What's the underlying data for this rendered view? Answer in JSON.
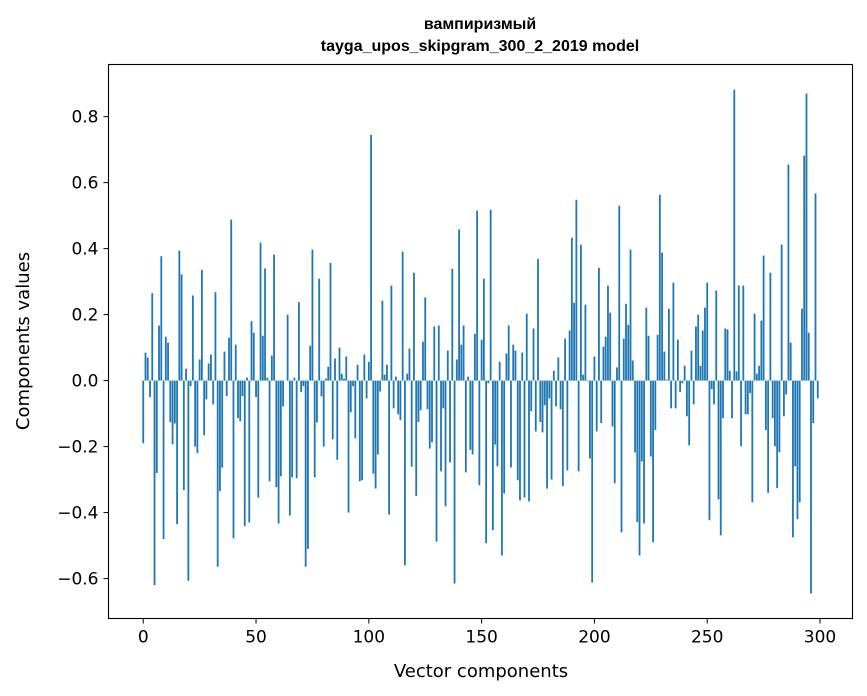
{
  "chart_data": {
    "type": "bar",
    "title": [
      "вампиризмый",
      "tayga_upos_skipgram_300_2_2019 model"
    ],
    "xlabel": "Vector components",
    "ylabel": "Components values",
    "xlim": [
      -15.4,
      314.4
    ],
    "ylim": [
      -0.721,
      0.958
    ],
    "xticks": [
      0,
      50,
      100,
      150,
      200,
      250,
      300
    ],
    "xtick_labels": [
      "0",
      "50",
      "100",
      "150",
      "200",
      "250",
      "300"
    ],
    "yticks": [
      -0.6,
      -0.4,
      -0.2,
      0.0,
      0.2,
      0.4,
      0.6,
      0.8
    ],
    "ytick_labels": [
      "−0.6",
      "−0.4",
      "−0.2",
      "0.0",
      "0.2",
      "0.4",
      "0.6",
      "0.8"
    ],
    "grid": false,
    "bar_color": "#1f77b4",
    "values": [
      -0.19,
      0.085,
      0.07,
      -0.05,
      0.265,
      -0.62,
      -0.28,
      0.167,
      0.377,
      -0.48,
      0.133,
      0.115,
      -0.126,
      -0.193,
      -0.13,
      -0.435,
      0.394,
      0.322,
      -0.332,
      0.036,
      -0.607,
      -0.017,
      0.258,
      -0.2,
      -0.22,
      0.064,
      0.336,
      -0.166,
      -0.057,
      0.052,
      0.079,
      -0.072,
      0.268,
      -0.564,
      -0.335,
      -0.264,
      0.088,
      -0.047,
      0.13,
      0.488,
      -0.478,
      0.109,
      -0.114,
      -0.123,
      -0.047,
      -0.441,
      0.009,
      -0.43,
      0.18,
      0.145,
      -0.05,
      -0.355,
      0.418,
      0.136,
      0.34,
      0.009,
      -0.305,
      0.076,
      0.382,
      -0.323,
      -0.433,
      -0.29,
      -0.078,
      0.0,
      0.2,
      -0.409,
      -0.293,
      0.009,
      -0.296,
      0.238,
      -0.035,
      -0.017,
      -0.564,
      -0.51,
      0.106,
      0.397,
      -0.293,
      -0.127,
      0.309,
      -0.048,
      -0.2,
      0.006,
      0.042,
      0.357,
      -0.178,
      0.067,
      -0.24,
      0.1,
      0.021,
      0.006,
      0.073,
      -0.4,
      -0.096,
      -0.017,
      -0.175,
      0.048,
      -0.305,
      -0.302,
      0.079,
      -0.054,
      0.057,
      0.745,
      -0.282,
      -0.327,
      -0.224,
      -0.033,
      0.242,
      0.018,
      0.048,
      -0.406,
      0.288,
      -0.084,
      0.012,
      -0.102,
      -0.12,
      0.391,
      -0.56,
      0.021,
      0.097,
      -0.261,
      0.327,
      -0.35,
      -0.126,
      -0.09,
      0.118,
      0.252,
      -0.087,
      -0.206,
      -0.187,
      0.164,
      -0.488,
      0.167,
      -0.275,
      -0.084,
      -0.381,
      0.091,
      -0.248,
      0.339,
      -0.615,
      0.064,
      0.458,
      0.109,
      0.167,
      -0.278,
      0.012,
      -0.21,
      -0.224,
      0.142,
      0.515,
      -0.317,
      0.124,
      0.309,
      -0.493,
      -0.008,
      0.518,
      -0.453,
      -0.194,
      -0.26,
      0.057,
      -0.53,
      -0.342,
      0.082,
      0.167,
      -0.263,
      0.109,
      0.091,
      -0.302,
      -0.363,
      0.085,
      -0.354,
      0.203,
      -0.366,
      -0.093,
      0.158,
      -0.154,
      0.369,
      -0.126,
      -0.157,
      -0.075,
      -0.327,
      -0.054,
      -0.3,
      0.03,
      -0.078,
      0.07,
      -0.087,
      -0.32,
      0.127,
      -0.272,
      0.152,
      0.433,
      0.236,
      0.548,
      -0.275,
      0.412,
      0.018,
      0.23,
      -0.002,
      -0.236,
      -0.612,
      0.073,
      -0.154,
      0.342,
      -0.129,
      0.103,
      0.133,
      0.288,
      0.206,
      -0.139,
      -0.311,
      0.04,
      0.53,
      -0.46,
      0.127,
      0.233,
      0.169,
      0.397,
      0.061,
      -0.218,
      -0.429,
      -0.53,
      -0.245,
      -0.433,
      0.221,
      0.136,
      -0.23,
      -0.49,
      -0.15,
      0.139,
      0.563,
      0.388,
      0.088,
      0.003,
      0.218,
      -0.084,
      0.297,
      -0.084,
      0.124,
      -0.035,
      -0.008,
      0.045,
      -0.108,
      -0.196,
      0.091,
      -0.072,
      0.164,
      0.2,
      0.045,
      0.152,
      0.221,
      0.297,
      -0.423,
      -0.026,
      -0.072,
      0.273,
      -0.36,
      -0.469,
      -0.114,
      0.158,
      0.155,
      0.03,
      -0.114,
      0.882,
      0.028,
      0.288,
      -0.199,
      0.288,
      -0.102,
      -0.102,
      -0.038,
      -0.369,
      0.203,
      0.021,
      0.045,
      0.182,
      0.379,
      -0.15,
      -0.34,
      0.327,
      -0.114,
      -0.199,
      -0.326,
      -0.217,
      0.412,
      -0.108,
      -0.042,
      0.655,
      0.115,
      -0.475,
      -0.26,
      -0.42,
      -0.369,
      0.218,
      0.682,
      0.87,
      0.145,
      -0.645,
      -0.129,
      0.567,
      -0.054
    ]
  }
}
